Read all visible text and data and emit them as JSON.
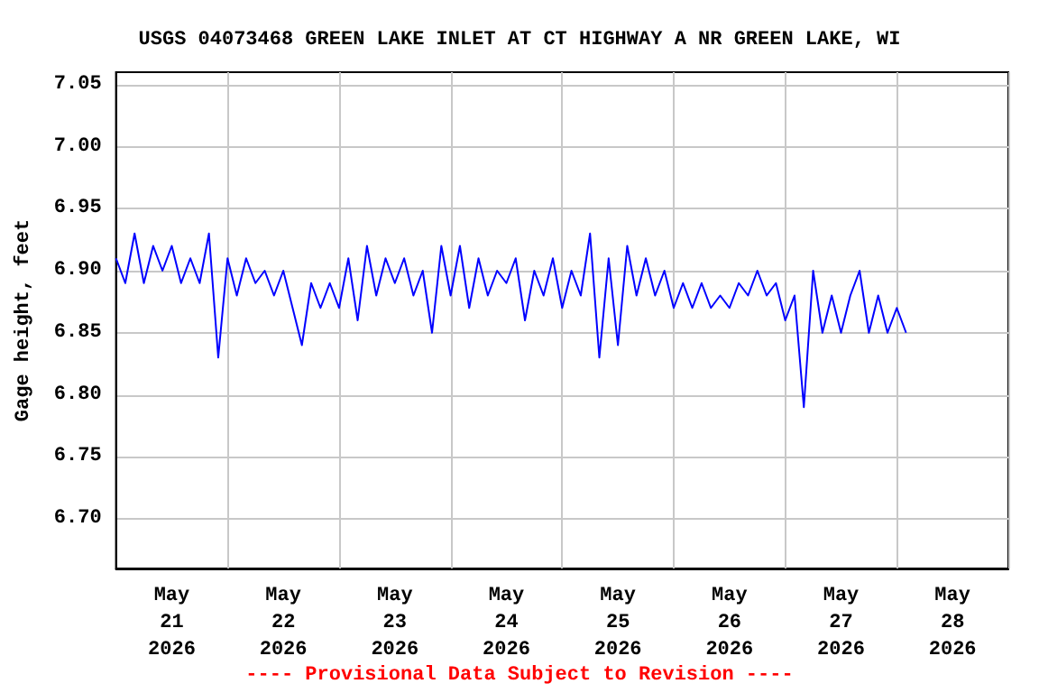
{
  "chart_data": {
    "type": "line",
    "title": "USGS 04073468 GREEN LAKE INLET AT CT HIGHWAY A NR GREEN LAKE, WI",
    "ylabel": "Gage height, feet",
    "annotations": [
      "---- Provisional Data Subject to Revision ----"
    ],
    "x": [
      "2026-05-21T00:00",
      "2026-05-21T02:00",
      "2026-05-21T04:00",
      "2026-05-21T06:00",
      "2026-05-21T08:00",
      "2026-05-21T10:00",
      "2026-05-21T12:00",
      "2026-05-21T14:00",
      "2026-05-21T16:00",
      "2026-05-21T18:00",
      "2026-05-21T20:00",
      "2026-05-21T22:00",
      "2026-05-22T00:00",
      "2026-05-22T02:00",
      "2026-05-22T04:00",
      "2026-05-22T06:00",
      "2026-05-22T08:00",
      "2026-05-22T10:00",
      "2026-05-22T12:00",
      "2026-05-22T14:00",
      "2026-05-22T16:00",
      "2026-05-22T18:00",
      "2026-05-22T20:00",
      "2026-05-22T22:00",
      "2026-05-23T00:00",
      "2026-05-23T02:00",
      "2026-05-23T04:00",
      "2026-05-23T06:00",
      "2026-05-23T08:00",
      "2026-05-23T10:00",
      "2026-05-23T12:00",
      "2026-05-23T14:00",
      "2026-05-23T16:00",
      "2026-05-23T18:00",
      "2026-05-23T20:00",
      "2026-05-23T22:00",
      "2026-05-24T00:00",
      "2026-05-24T02:00",
      "2026-05-24T04:00",
      "2026-05-24T06:00",
      "2026-05-24T08:00",
      "2026-05-24T10:00",
      "2026-05-24T12:00",
      "2026-05-24T14:00",
      "2026-05-24T16:00",
      "2026-05-24T18:00",
      "2026-05-24T20:00",
      "2026-05-24T22:00",
      "2026-05-25T00:00",
      "2026-05-25T02:00",
      "2026-05-25T04:00",
      "2026-05-25T06:00",
      "2026-05-25T08:00",
      "2026-05-25T10:00",
      "2026-05-25T12:00",
      "2026-05-25T14:00",
      "2026-05-25T16:00",
      "2026-05-25T18:00",
      "2026-05-25T20:00",
      "2026-05-25T22:00",
      "2026-05-26T00:00",
      "2026-05-26T02:00",
      "2026-05-26T04:00",
      "2026-05-26T06:00",
      "2026-05-26T08:00",
      "2026-05-26T10:00",
      "2026-05-26T12:00",
      "2026-05-26T14:00",
      "2026-05-26T16:00",
      "2026-05-26T18:00",
      "2026-05-26T20:00",
      "2026-05-26T22:00",
      "2026-05-27T00:00",
      "2026-05-27T02:00",
      "2026-05-27T04:00",
      "2026-05-27T06:00",
      "2026-05-27T08:00",
      "2026-05-27T10:00",
      "2026-05-27T12:00",
      "2026-05-27T14:00",
      "2026-05-27T16:00",
      "2026-05-27T18:00",
      "2026-05-27T20:00",
      "2026-05-27T22:00",
      "2026-05-28T00:00",
      "2026-05-28T02:00"
    ],
    "series": [
      {
        "color": "#0000ff",
        "values": [
          6.91,
          6.89,
          6.93,
          6.89,
          6.92,
          6.9,
          6.92,
          6.89,
          6.91,
          6.89,
          6.93,
          6.83,
          6.91,
          6.88,
          6.91,
          6.89,
          6.9,
          6.88,
          6.9,
          6.87,
          6.84,
          6.89,
          6.87,
          6.89,
          6.87,
          6.91,
          6.86,
          6.92,
          6.88,
          6.91,
          6.89,
          6.91,
          6.88,
          6.9,
          6.85,
          6.92,
          6.88,
          6.92,
          6.87,
          6.91,
          6.88,
          6.9,
          6.89,
          6.91,
          6.86,
          6.9,
          6.88,
          6.91,
          6.87,
          6.9,
          6.88,
          6.93,
          6.83,
          6.91,
          6.84,
          6.92,
          6.88,
          6.91,
          6.88,
          6.9,
          6.87,
          6.89,
          6.87,
          6.89,
          6.87,
          6.88,
          6.87,
          6.89,
          6.88,
          6.9,
          6.88,
          6.89,
          6.86,
          6.88,
          6.79,
          6.9,
          6.85,
          6.88,
          6.85,
          6.88,
          6.9,
          6.85,
          6.88,
          6.85,
          6.87,
          6.85
        ]
      }
    ],
    "xlim": [
      "2026-05-21T00:00",
      "2026-05-29T00:00"
    ],
    "xticks": [
      {
        "value": "2026-05-21T00:00",
        "label": null
      },
      {
        "value": "2026-05-22T00:00",
        "label": null
      },
      {
        "value": "2026-05-23T00:00",
        "label": null
      },
      {
        "value": "2026-05-24T00:00",
        "label": null
      },
      {
        "value": "2026-05-25T00:00",
        "label": null
      },
      {
        "value": "2026-05-26T00:00",
        "label": null
      },
      {
        "value": "2026-05-27T00:00",
        "label": null
      },
      {
        "value": "2026-05-28T00:00",
        "label": null
      },
      {
        "value": "2026-05-29T00:00",
        "label": null
      },
      {
        "value": "2026-05-21T12:00",
        "label": "May\n21\n2026"
      },
      {
        "value": "2026-05-22T12:00",
        "label": "May\n22\n2026"
      },
      {
        "value": "2026-05-23T12:00",
        "label": "May\n23\n2026"
      },
      {
        "value": "2026-05-24T12:00",
        "label": "May\n24\n2026"
      },
      {
        "value": "2026-05-25T12:00",
        "label": "May\n25\n2026"
      },
      {
        "value": "2026-05-26T12:00",
        "label": "May\n26\n2026"
      },
      {
        "value": "2026-05-27T12:00",
        "label": "May\n27\n2026"
      },
      {
        "value": "2026-05-28T12:00",
        "label": "May\n28\n2026"
      }
    ],
    "ylim": [
      6.66,
      7.06
    ],
    "yticks": [
      {
        "value": 6.7,
        "label": "6.70"
      },
      {
        "value": 6.75,
        "label": "6.75"
      },
      {
        "value": 6.8,
        "label": "6.80"
      },
      {
        "value": 6.85,
        "label": "6.85"
      },
      {
        "value": 6.9,
        "label": "6.90"
      },
      {
        "value": 6.95,
        "label": "6.95"
      },
      {
        "value": 7.0,
        "label": "7.00"
      },
      {
        "value": 7.05,
        "label": "7.05"
      }
    ],
    "grid": true,
    "legend": false,
    "marker": "none",
    "line_style": "solid"
  }
}
